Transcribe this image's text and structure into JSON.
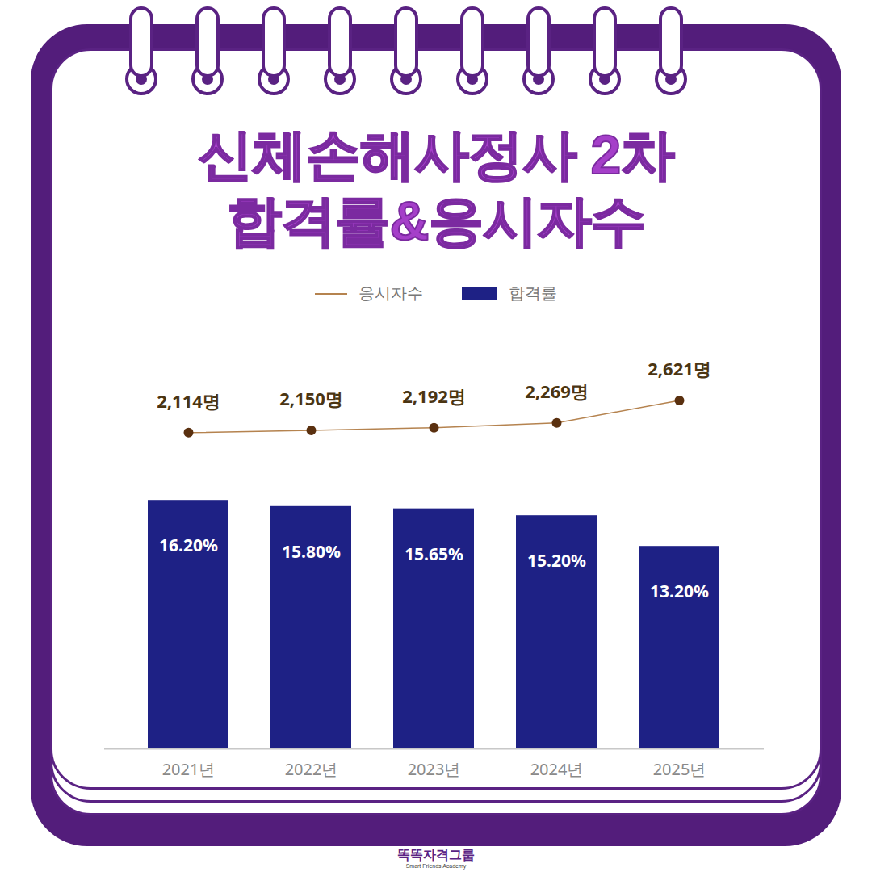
{
  "chart_data": {
    "type": "bar",
    "title": "신체손해사정사 2차 합격률&응시자수",
    "categories": [
      "2021년",
      "2022년",
      "2023년",
      "2024년",
      "2025년"
    ],
    "series": [
      {
        "name": "응시자수",
        "type": "line",
        "axis": "y2",
        "color": "#b5834f",
        "marker": "circle",
        "values": [
          2114,
          2150,
          2192,
          2269,
          2621
        ],
        "value_labels": [
          "2,114명",
          "2,150명",
          "2,192명",
          "2,269명",
          "2,621명"
        ]
      },
      {
        "name": "합격률",
        "type": "bar",
        "color": "#1e2185",
        "values": [
          16.2,
          15.8,
          15.65,
          15.2,
          13.2
        ],
        "value_labels": [
          "16.20%",
          "15.80%",
          "15.65%",
          "15.20%",
          "13.20%"
        ]
      }
    ],
    "ylim": [
      0,
      17
    ],
    "yticks": [],
    "y2lim": [
      1800,
      3200
    ],
    "y2ticks": [],
    "tick_labels": "x",
    "data_labels": true,
    "legend": "top",
    "grid": false
  },
  "brand": {
    "name": "똑똑자격그룹",
    "subtitle": "Smart Friends Academy"
  }
}
